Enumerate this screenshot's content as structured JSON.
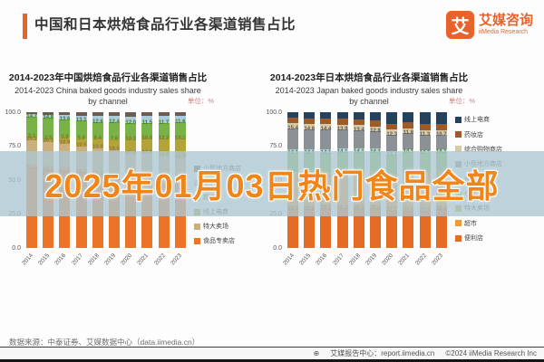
{
  "header": {
    "title": "中国和日本烘焙食品行业各渠道销售占比",
    "logo": {
      "mark": "艾",
      "name_cn": "艾媒咨询",
      "name_en": "iiMedia Research"
    }
  },
  "watermark": {
    "text": "2025年01月03日热门食品全部"
  },
  "footer": {
    "source": "数据来源：中泰证券、艾媒数据中心（data.iimedia.cn）",
    "report_center": "艾媒报告中心：report.iimedia.cn",
    "copyright": "©2024 iiMedia Research Inc"
  },
  "chart_data": [
    {
      "type": "bar",
      "stacked": true,
      "title_cn": "2014-2023年中国烘焙食品行业各渠道销售占比",
      "title_en": "2014-2023 China baked goods industry sales share",
      "title_en2": "by channel",
      "unit": "单位：%",
      "xlabel": "",
      "ylabel": "",
      "ylim": [
        0,
        100
      ],
      "grid": false,
      "legend_position": "right",
      "yticks": [
        "100.0",
        "75.0",
        "50.0",
        "25.0",
        "0.0"
      ],
      "categories": [
        "2014",
        "2015",
        "2016",
        "2017",
        "2018",
        "2019",
        "2020",
        "2021",
        "2022",
        "2023"
      ],
      "series": [
        {
          "name": "食品专卖店",
          "color": "#EB7429",
          "label_color": "#D2600F",
          "show_labels": true,
          "values": [
            59.5,
            58.1,
            57.5,
            56.1,
            55.0,
            54.1,
            52.1,
            53.2,
            51.3,
            50.0
          ]
        },
        {
          "name": "特大卖场",
          "color": "#CBB07E",
          "label_color": "#8D7844",
          "show_labels": true,
          "values": [
            20.2,
            20.3,
            19.9,
            19.5,
            19.0,
            18.5,
            17.3,
            17.0,
            17.0,
            16.7
          ]
        },
        {
          "name": "线上电商",
          "color": "#B3A439",
          "label_color": "#7D7820",
          "show_labels": true,
          "values": [
            2.1,
            2.5,
            3.9,
            5.0,
            6.4,
            7.6,
            10.3,
            10.6,
            12.2,
            14.1
          ]
        },
        {
          "name": "超市",
          "color": "#79B348",
          "label_color": "#3F7D1A",
          "show_labels": true,
          "values": [
            14.7,
            14.8,
            13.6,
            13.1,
            12.6,
            12.4,
            12.0,
            11.5,
            11.7,
            11.6
          ]
        },
        {
          "name": "便利店",
          "color": "#ACCBDD",
          "label_color": "#5B7E93",
          "show_labels": false,
          "values": [
            2.0,
            2.5,
            3.0,
            3.7,
            4.2,
            4.6,
            5.3,
            4.9,
            5.2,
            5.1
          ]
        },
        {
          "name": "小型地方商店",
          "color": "#6D5B4F",
          "label_color": "#4A3C32",
          "show_labels": false,
          "values": [
            1.5,
            1.8,
            2.1,
            2.6,
            2.8,
            2.8,
            3.0,
            2.8,
            2.6,
            2.5
          ]
        }
      ]
    },
    {
      "type": "bar",
      "stacked": true,
      "title_cn": "2014-2023年日本烘焙食品行业各渠道销售占比",
      "title_en": "2014-2023 Japan baked goods industry sales share",
      "title_en2": "by channel",
      "unit": "单位：%",
      "xlabel": "",
      "ylabel": "",
      "ylim": [
        0,
        100
      ],
      "grid": false,
      "legend_position": "right",
      "yticks": [
        "100.0",
        "75.0",
        "50.0",
        "25.0",
        "0.0"
      ],
      "categories": [
        "2014",
        "2015",
        "2016",
        "2017",
        "2018",
        "2019",
        "2020",
        "2021",
        "2022",
        "2023"
      ],
      "series": [
        {
          "name": "便利店",
          "color": "#E46C24",
          "label_color": "#C05310",
          "show_labels": true,
          "values": [
            28.9,
            29.0,
            29.1,
            29.3,
            29.5,
            29.6,
            27.7,
            27.5,
            27.5,
            28.4
          ]
        },
        {
          "name": "超市",
          "color": "#F0993C",
          "label_color": "#C07415",
          "show_labels": true,
          "values": [
            23.3,
            23.4,
            23.6,
            23.8,
            23.8,
            23.7,
            23.7,
            25.6,
            25.1,
            24.9
          ]
        },
        {
          "name": "特大卖场",
          "color": "#C9B343",
          "label_color": "#8F8020",
          "show_labels": false,
          "values": [
            3.6,
            3.5,
            3.5,
            3.4,
            3.4,
            3.3,
            3.3,
            3.2,
            3.2,
            3.1
          ]
        },
        {
          "name": "仓储会员店",
          "color": "#7FB450",
          "label_color": "#3F7D1A",
          "show_labels": true,
          "values": [
            14.1,
            14.1,
            14.1,
            14.1,
            14.1,
            14.1,
            14.1,
            14.1,
            14.1,
            14.1
          ]
        },
        {
          "name": "食品专卖店",
          "color": "#B9D6E8",
          "label_color": "#5B7E93",
          "show_labels": false,
          "values": [
            2.8,
            2.8,
            2.7,
            2.7,
            2.6,
            2.6,
            2.5,
            2.5,
            2.4,
            2.4
          ]
        },
        {
          "name": "小型地方商店",
          "color": "#8C9196",
          "label_color": "#55585B",
          "show_labels": true,
          "values": [
            15.4,
            14.8,
            14.4,
            13.9,
            13.4,
            12.8,
            12.3,
            11.8,
            11.3,
            10.7
          ]
        },
        {
          "name": "综合购物商店",
          "color": "#D8C9A4",
          "label_color": "#96875F",
          "show_labels": false,
          "values": [
            4.1,
            4.0,
            3.9,
            3.8,
            3.7,
            3.6,
            3.5,
            3.4,
            3.3,
            3.2
          ]
        },
        {
          "name": "药妆店",
          "color": "#9E5B2A",
          "label_color": "#6F3D18",
          "show_labels": false,
          "values": [
            3.8,
            3.9,
            4.0,
            4.1,
            4.2,
            4.3,
            4.4,
            4.5,
            4.6,
            4.7
          ]
        },
        {
          "name": "线上电商",
          "color": "#24415E",
          "label_color": "#16293C",
          "show_labels": false,
          "values": [
            4.0,
            4.5,
            4.7,
            4.9,
            5.3,
            6.0,
            8.5,
            7.4,
            8.5,
            8.5
          ]
        }
      ]
    }
  ]
}
